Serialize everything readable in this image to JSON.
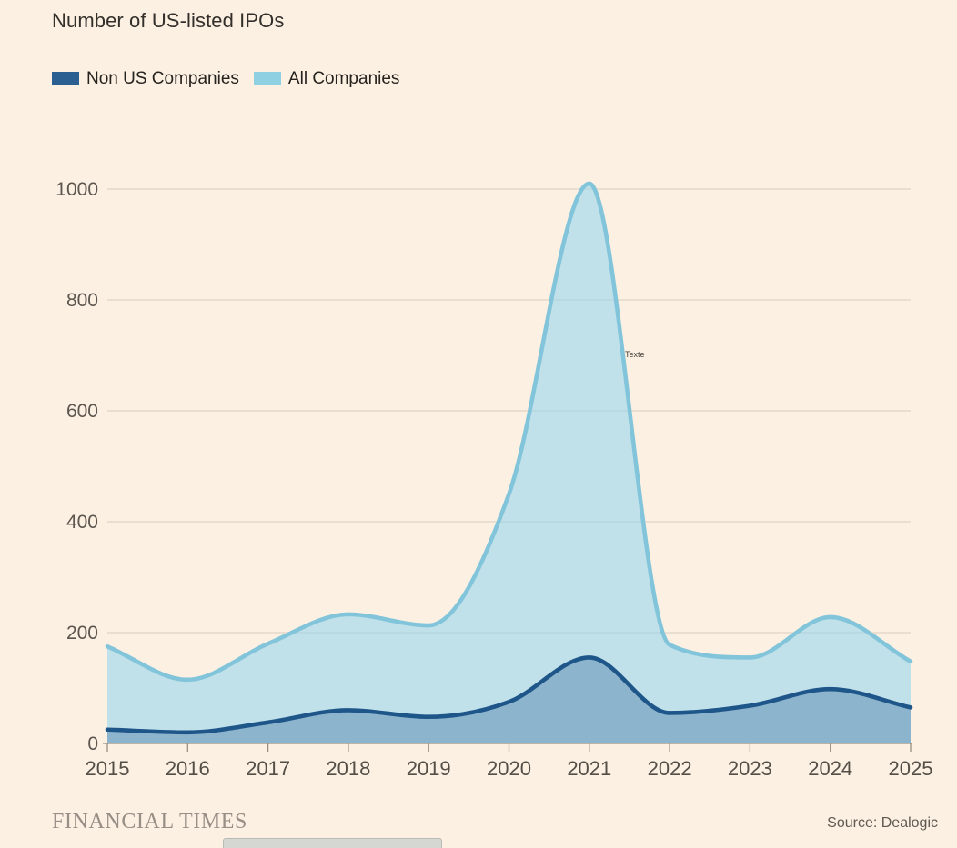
{
  "header": {
    "title": "Number of US-listed IPOs"
  },
  "legend": {
    "items": [
      {
        "label": "Non US Companies",
        "color": "#2B5F92"
      },
      {
        "label": "All Companies",
        "color": "#8FD0E3"
      }
    ]
  },
  "chart_data": {
    "type": "area",
    "title": "Number of US-listed IPOs",
    "x": [
      2015,
      2016,
      2017,
      2018,
      2019,
      2020,
      2021,
      2022,
      2023,
      2024,
      2025
    ],
    "series": [
      {
        "name": "Non US Companies",
        "values": [
          25,
          20,
          38,
          60,
          48,
          75,
          155,
          55,
          68,
          98,
          65
        ],
        "line_color": "#1F568A",
        "fill_color": "rgba(31,86,140,0.32)"
      },
      {
        "name": "All Companies",
        "values": [
          175,
          115,
          180,
          233,
          213,
          450,
          1010,
          178,
          155,
          228,
          148
        ],
        "line_color": "#82C5DB",
        "fill_color": "rgba(151,214,239,0.60)"
      }
    ],
    "ylim": [
      0,
      1000
    ],
    "yticks": [
      0,
      200,
      400,
      600,
      800,
      1000
    ],
    "grid": true,
    "legend_position": "top-left",
    "annotation": {
      "label": "Texte",
      "x": 2021.5,
      "y": 700
    },
    "colors": {
      "grid": "#D9CDBE",
      "axis": "#978F84",
      "y_tick_text": "#5C564E",
      "x_tick_text": "#534E46"
    }
  },
  "footer": {
    "brand": "FINANCIAL TIMES",
    "source": "Source: Dealogic"
  }
}
